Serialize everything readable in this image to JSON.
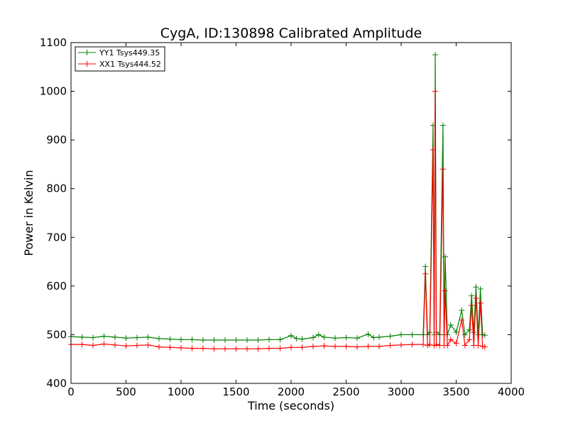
{
  "chart_data": {
    "type": "line",
    "title": "CygA, ID:130898 Calibrated Amplitude",
    "xlabel": "Time (seconds)",
    "ylabel": "Power in Kelvin",
    "xlim": [
      0,
      4000
    ],
    "ylim": [
      400,
      1100
    ],
    "x_ticks": [
      "0",
      "500",
      "1000",
      "1500",
      "2000",
      "2500",
      "3000",
      "3500",
      "4000"
    ],
    "y_ticks": [
      "400",
      "500",
      "600",
      "700",
      "800",
      "900",
      "1000",
      "1100"
    ],
    "grid": false,
    "legend_position": "top-left",
    "marker": "+",
    "series": [
      {
        "name": "YY1 Tsys449.35",
        "color": "#008000",
        "points": [
          [
            0,
            496
          ],
          [
            100,
            495
          ],
          [
            200,
            494
          ],
          [
            300,
            497
          ],
          [
            400,
            495
          ],
          [
            500,
            493
          ],
          [
            600,
            494
          ],
          [
            700,
            495
          ],
          [
            800,
            492
          ],
          [
            900,
            491
          ],
          [
            1000,
            490
          ],
          [
            1100,
            490
          ],
          [
            1200,
            489
          ],
          [
            1300,
            489
          ],
          [
            1400,
            489
          ],
          [
            1500,
            489
          ],
          [
            1600,
            489
          ],
          [
            1700,
            489
          ],
          [
            1800,
            490
          ],
          [
            1900,
            490
          ],
          [
            2000,
            498
          ],
          [
            2050,
            492
          ],
          [
            2100,
            491
          ],
          [
            2200,
            494
          ],
          [
            2250,
            500
          ],
          [
            2300,
            495
          ],
          [
            2400,
            493
          ],
          [
            2500,
            494
          ],
          [
            2600,
            493
          ],
          [
            2700,
            501
          ],
          [
            2750,
            494
          ],
          [
            2800,
            495
          ],
          [
            2900,
            497
          ],
          [
            3000,
            500
          ],
          [
            3100,
            500
          ],
          [
            3200,
            500
          ],
          [
            3220,
            640
          ],
          [
            3240,
            500
          ],
          [
            3260,
            505
          ],
          [
            3290,
            930
          ],
          [
            3300,
            500
          ],
          [
            3310,
            1075
          ],
          [
            3320,
            505
          ],
          [
            3350,
            500
          ],
          [
            3380,
            930
          ],
          [
            3390,
            500
          ],
          [
            3400,
            660
          ],
          [
            3420,
            500
          ],
          [
            3450,
            520
          ],
          [
            3500,
            505
          ],
          [
            3550,
            550
          ],
          [
            3580,
            500
          ],
          [
            3620,
            510
          ],
          [
            3640,
            580
          ],
          [
            3660,
            505
          ],
          [
            3680,
            598
          ],
          [
            3700,
            500
          ],
          [
            3720,
            594
          ],
          [
            3740,
            500
          ],
          [
            3760,
            499
          ]
        ]
      },
      {
        "name": "XX1 Tsys444.52",
        "color": "#ff0000",
        "points": [
          [
            0,
            480
          ],
          [
            100,
            480
          ],
          [
            200,
            478
          ],
          [
            300,
            481
          ],
          [
            400,
            479
          ],
          [
            500,
            477
          ],
          [
            600,
            478
          ],
          [
            700,
            479
          ],
          [
            800,
            475
          ],
          [
            900,
            474
          ],
          [
            1000,
            473
          ],
          [
            1100,
            472
          ],
          [
            1200,
            472
          ],
          [
            1300,
            471
          ],
          [
            1400,
            471
          ],
          [
            1500,
            471
          ],
          [
            1600,
            471
          ],
          [
            1700,
            471
          ],
          [
            1800,
            472
          ],
          [
            1900,
            472
          ],
          [
            2000,
            474
          ],
          [
            2100,
            474
          ],
          [
            2200,
            476
          ],
          [
            2300,
            477
          ],
          [
            2400,
            476
          ],
          [
            2500,
            476
          ],
          [
            2600,
            475
          ],
          [
            2700,
            476
          ],
          [
            2800,
            476
          ],
          [
            2900,
            478
          ],
          [
            3000,
            479
          ],
          [
            3100,
            480
          ],
          [
            3200,
            480
          ],
          [
            3220,
            625
          ],
          [
            3240,
            478
          ],
          [
            3260,
            480
          ],
          [
            3290,
            880
          ],
          [
            3300,
            478
          ],
          [
            3310,
            1000
          ],
          [
            3320,
            480
          ],
          [
            3350,
            478
          ],
          [
            3380,
            840
          ],
          [
            3390,
            478
          ],
          [
            3400,
            590
          ],
          [
            3420,
            478
          ],
          [
            3450,
            490
          ],
          [
            3500,
            482
          ],
          [
            3550,
            530
          ],
          [
            3580,
            478
          ],
          [
            3620,
            490
          ],
          [
            3640,
            560
          ],
          [
            3660,
            478
          ],
          [
            3680,
            575
          ],
          [
            3700,
            478
          ],
          [
            3720,
            565
          ],
          [
            3740,
            476
          ],
          [
            3760,
            475
          ]
        ]
      }
    ]
  }
}
